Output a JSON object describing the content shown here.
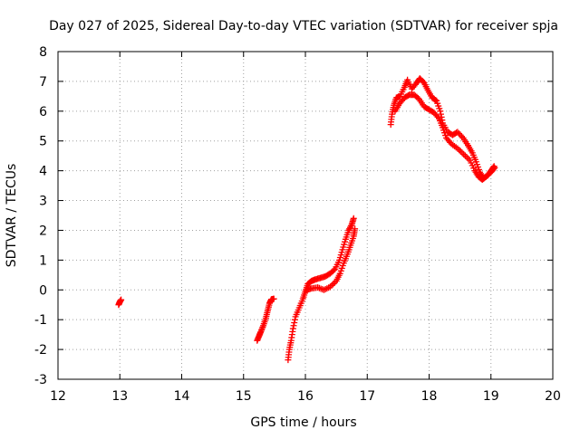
{
  "chart_data": {
    "type": "scatter",
    "title": "Day 027 of 2025, Sidereal Day-to-day VTEC variation (SDTVAR) for receiver spja",
    "xlabel": "GPS time / hours",
    "ylabel": "SDTVAR / TECUs",
    "xlim": [
      12,
      20
    ],
    "ylim": [
      -3,
      8
    ],
    "xticks": [
      12,
      13,
      14,
      15,
      16,
      17,
      18,
      19,
      20
    ],
    "xtick_labels": [
      "12",
      "13",
      "14",
      "15",
      "16",
      "17",
      "18",
      "19",
      "20"
    ],
    "yticks": [
      -3,
      -2,
      -1,
      0,
      1,
      2,
      3,
      4,
      5,
      6,
      7,
      8
    ],
    "ytick_labels": [
      "-3",
      "-2",
      "-1",
      "0",
      "1",
      "2",
      "3",
      "4",
      "5",
      "6",
      "7",
      "8"
    ],
    "grid": true,
    "marker": "plus",
    "color": "#ff0000",
    "series": [
      {
        "name": "segment-13h",
        "points": [
          [
            12.98,
            -0.5
          ],
          [
            13.0,
            -0.4
          ],
          [
            13.02,
            -0.33
          ]
        ]
      },
      {
        "name": "segment-15.2h",
        "points": [
          [
            15.22,
            -1.7
          ],
          [
            15.25,
            -1.55
          ],
          [
            15.28,
            -1.4
          ],
          [
            15.32,
            -1.2
          ],
          [
            15.36,
            -0.95
          ],
          [
            15.39,
            -0.7
          ],
          [
            15.42,
            -0.45
          ],
          [
            15.45,
            -0.32
          ],
          [
            15.49,
            -0.3
          ]
        ]
      },
      {
        "name": "segment-15.7h-upper",
        "points": [
          [
            15.72,
            -2.35
          ],
          [
            15.74,
            -2.0
          ],
          [
            15.77,
            -1.7
          ],
          [
            15.8,
            -1.3
          ],
          [
            15.84,
            -0.9
          ],
          [
            15.9,
            -0.6
          ],
          [
            15.96,
            -0.3
          ],
          [
            16.0,
            -0.05
          ],
          [
            16.04,
            0.2
          ],
          [
            16.1,
            0.3
          ],
          [
            16.16,
            0.35
          ],
          [
            16.24,
            0.4
          ],
          [
            16.32,
            0.45
          ],
          [
            16.4,
            0.55
          ],
          [
            16.48,
            0.7
          ],
          [
            16.55,
            1.0
          ],
          [
            16.6,
            1.35
          ],
          [
            16.65,
            1.7
          ],
          [
            16.7,
            2.0
          ],
          [
            16.75,
            2.2
          ],
          [
            16.78,
            2.4
          ]
        ]
      },
      {
        "name": "segment-16h-lower",
        "points": [
          [
            16.02,
            0.0
          ],
          [
            16.1,
            0.05
          ],
          [
            16.2,
            0.08
          ],
          [
            16.3,
            0.0
          ],
          [
            16.4,
            0.1
          ],
          [
            16.5,
            0.3
          ],
          [
            16.56,
            0.55
          ],
          [
            16.62,
            0.9
          ],
          [
            16.68,
            1.2
          ],
          [
            16.73,
            1.5
          ],
          [
            16.78,
            1.8
          ],
          [
            16.8,
            2.05
          ]
        ]
      },
      {
        "name": "segment-17.4h-outer",
        "points": [
          [
            17.38,
            5.55
          ],
          [
            17.4,
            5.9
          ],
          [
            17.43,
            6.2
          ],
          [
            17.47,
            6.45
          ],
          [
            17.53,
            6.5
          ],
          [
            17.6,
            6.8
          ],
          [
            17.65,
            7.05
          ],
          [
            17.72,
            6.75
          ],
          [
            17.8,
            6.95
          ],
          [
            17.85,
            7.1
          ],
          [
            17.92,
            6.95
          ],
          [
            17.98,
            6.7
          ],
          [
            18.05,
            6.45
          ],
          [
            18.12,
            6.35
          ],
          [
            18.18,
            6.0
          ],
          [
            18.22,
            5.6
          ],
          [
            18.3,
            5.3
          ],
          [
            18.38,
            5.2
          ],
          [
            18.46,
            5.3
          ],
          [
            18.55,
            5.1
          ],
          [
            18.63,
            4.85
          ],
          [
            18.7,
            4.6
          ],
          [
            18.76,
            4.3
          ],
          [
            18.82,
            3.95
          ],
          [
            18.88,
            3.75
          ],
          [
            18.95,
            3.85
          ],
          [
            19.0,
            4.0
          ],
          [
            19.05,
            4.15
          ]
        ]
      },
      {
        "name": "segment-17.4h-inner",
        "points": [
          [
            17.45,
            6.0
          ],
          [
            17.52,
            6.25
          ],
          [
            17.6,
            6.45
          ],
          [
            17.68,
            6.55
          ],
          [
            17.76,
            6.55
          ],
          [
            17.84,
            6.4
          ],
          [
            17.92,
            6.15
          ],
          [
            18.0,
            6.05
          ],
          [
            18.08,
            5.95
          ],
          [
            18.16,
            5.75
          ],
          [
            18.22,
            5.45
          ],
          [
            18.28,
            5.1
          ],
          [
            18.36,
            4.9
          ],
          [
            18.46,
            4.75
          ],
          [
            18.56,
            4.55
          ],
          [
            18.66,
            4.35
          ],
          [
            18.74,
            4.0
          ],
          [
            18.8,
            3.8
          ],
          [
            18.86,
            3.7
          ],
          [
            18.92,
            3.8
          ],
          [
            19.0,
            3.95
          ],
          [
            19.06,
            4.1
          ]
        ]
      }
    ]
  }
}
